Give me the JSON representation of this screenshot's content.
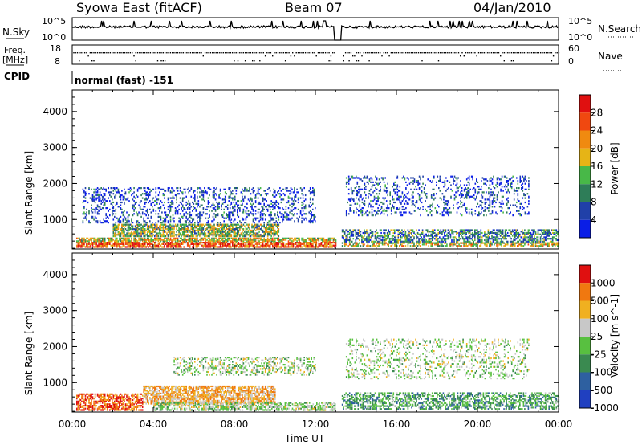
{
  "header": {
    "station": "Syowa East (fitACF)",
    "beam": "Beam 07",
    "date": "04/Jan/2010"
  },
  "summary_panels": {
    "nsky_label": "N.Sky",
    "nsky_ticks": [
      "10^5",
      "10^0"
    ],
    "nsearch_label": "N.Search",
    "nsearch_ticks": [
      "10^5",
      "10^0"
    ],
    "freq_label_1": "Freq.",
    "freq_label_2": "[MHz]",
    "freq_ticks": [
      "18",
      "8"
    ],
    "nave_label": "Nave",
    "nave_ticks": [
      "60",
      "0"
    ],
    "cpid_label": "CPID",
    "cpid_value": "normal (fast) -151"
  },
  "x_axis": {
    "label": "Time UT",
    "ticks": [
      "00:00",
      "04:00",
      "08:00",
      "12:00",
      "16:00",
      "20:00",
      "00:00"
    ]
  },
  "chart_data": [
    {
      "type": "heatmap",
      "panel": "power",
      "ylabel": "Slant Range [km]",
      "y_ticks": [
        "1000",
        "2000",
        "3000",
        "4000"
      ],
      "ylim": [
        180,
        4600
      ],
      "xlim_hours": [
        0,
        24
      ],
      "colorbar": {
        "label": "Power [dB]",
        "ticks": [
          "4",
          "8",
          "12",
          "16",
          "20",
          "24",
          "28"
        ],
        "range": [
          0,
          32
        ],
        "colors": [
          "#0a1ee6",
          "#2040a8",
          "#2e7d58",
          "#48b848",
          "#e6b416",
          "#f08a10",
          "#f04810",
          "#e01010"
        ]
      },
      "echo_regions": [
        {
          "t0": 0.2,
          "t1": 13.0,
          "r0": 220,
          "r1": 480,
          "density": 0.75,
          "level": 0.55
        },
        {
          "t0": 2.0,
          "t1": 10.2,
          "r0": 520,
          "r1": 860,
          "density": 0.7,
          "level": 0.45
        },
        {
          "t0": 0.5,
          "t1": 12.0,
          "r0": 900,
          "r1": 1900,
          "density": 0.25,
          "level": 0.15
        },
        {
          "t0": 13.3,
          "t1": 24.0,
          "r0": 250,
          "r1": 700,
          "density": 0.55,
          "level": 0.3
        },
        {
          "t0": 13.5,
          "t1": 22.5,
          "r0": 1100,
          "r1": 2200,
          "density": 0.2,
          "level": 0.15
        }
      ]
    },
    {
      "type": "heatmap",
      "panel": "velocity",
      "ylabel": "Slant Range [km]",
      "y_ticks": [
        "1000",
        "2000",
        "3000",
        "4000"
      ],
      "ylim": [
        180,
        4600
      ],
      "xlim_hours": [
        0,
        24
      ],
      "colorbar": {
        "label": "Velocity [m s^-1]",
        "ticks": [
          "1000",
          "500",
          "100",
          "25",
          "-25",
          "-100",
          "-500",
          "-1000"
        ],
        "colors": [
          "#2040c0",
          "#2e60a0",
          "#3a8a50",
          "#58c040",
          "#c8c8c8",
          "#f0b020",
          "#f07810",
          "#e01010"
        ]
      },
      "echo_regions": [
        {
          "t0": 0.2,
          "t1": 3.5,
          "r0": 220,
          "r1": 700,
          "density": 0.6,
          "level": 0.85
        },
        {
          "t0": 3.5,
          "t1": 10.0,
          "r0": 400,
          "r1": 900,
          "density": 0.7,
          "level": 0.7
        },
        {
          "t0": 4.0,
          "t1": 13.0,
          "r0": 220,
          "r1": 450,
          "density": 0.6,
          "level": 0.5
        },
        {
          "t0": 5.0,
          "t1": 12.0,
          "r0": 1200,
          "r1": 1700,
          "density": 0.3,
          "level": 0.5
        },
        {
          "t0": 13.3,
          "t1": 24.0,
          "r0": 250,
          "r1": 700,
          "density": 0.5,
          "level": 0.35
        },
        {
          "t0": 13.5,
          "t1": 22.5,
          "r0": 1100,
          "r1": 2200,
          "density": 0.2,
          "level": 0.5
        }
      ]
    }
  ]
}
